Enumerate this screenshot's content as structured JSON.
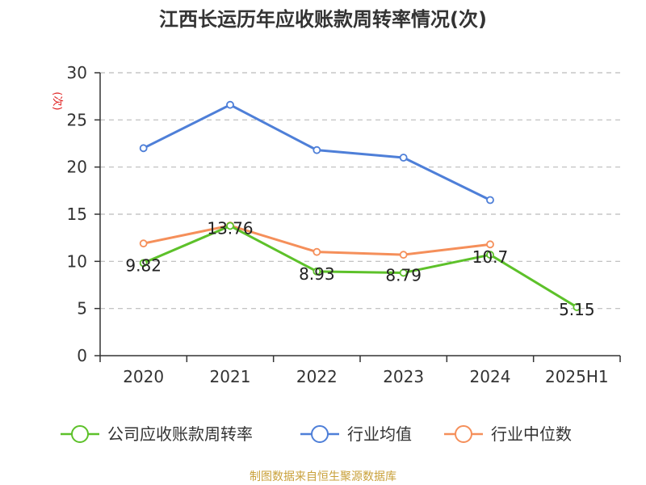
{
  "source_note": "制图数据来自恒生聚源数据库",
  "colors": {
    "source": "#C9A13B",
    "unit": "#E02020",
    "axis": "#333333",
    "grid": "#BBBBBB"
  },
  "chart_data": {
    "type": "line",
    "title": "江西长运历年应收账款周转率情况(次)",
    "ylabel": "(次)",
    "xlabel": "",
    "categories": [
      "2020",
      "2021",
      "2022",
      "2023",
      "2024",
      "2025H1"
    ],
    "ylim": [
      0,
      30
    ],
    "yticks": [
      0,
      5,
      10,
      15,
      20,
      25,
      30
    ],
    "grid": true,
    "legend_position": "bottom",
    "series": [
      {
        "name": "公司应收账款周转率",
        "color": "#5DC12A",
        "labels": true,
        "values": [
          9.82,
          13.76,
          8.93,
          8.79,
          10.7,
          5.15
        ],
        "value_labels": [
          "9.82",
          "13.76",
          "8.93",
          "8.79",
          "10.7",
          "5.15"
        ]
      },
      {
        "name": "行业均值",
        "color": "#4E7FD8",
        "labels": false,
        "values": [
          22.0,
          26.6,
          21.8,
          21.0,
          16.5,
          null
        ]
      },
      {
        "name": "行业中位数",
        "color": "#F58F5A",
        "labels": false,
        "values": [
          11.9,
          13.8,
          11.0,
          10.7,
          11.8,
          null
        ]
      }
    ]
  }
}
